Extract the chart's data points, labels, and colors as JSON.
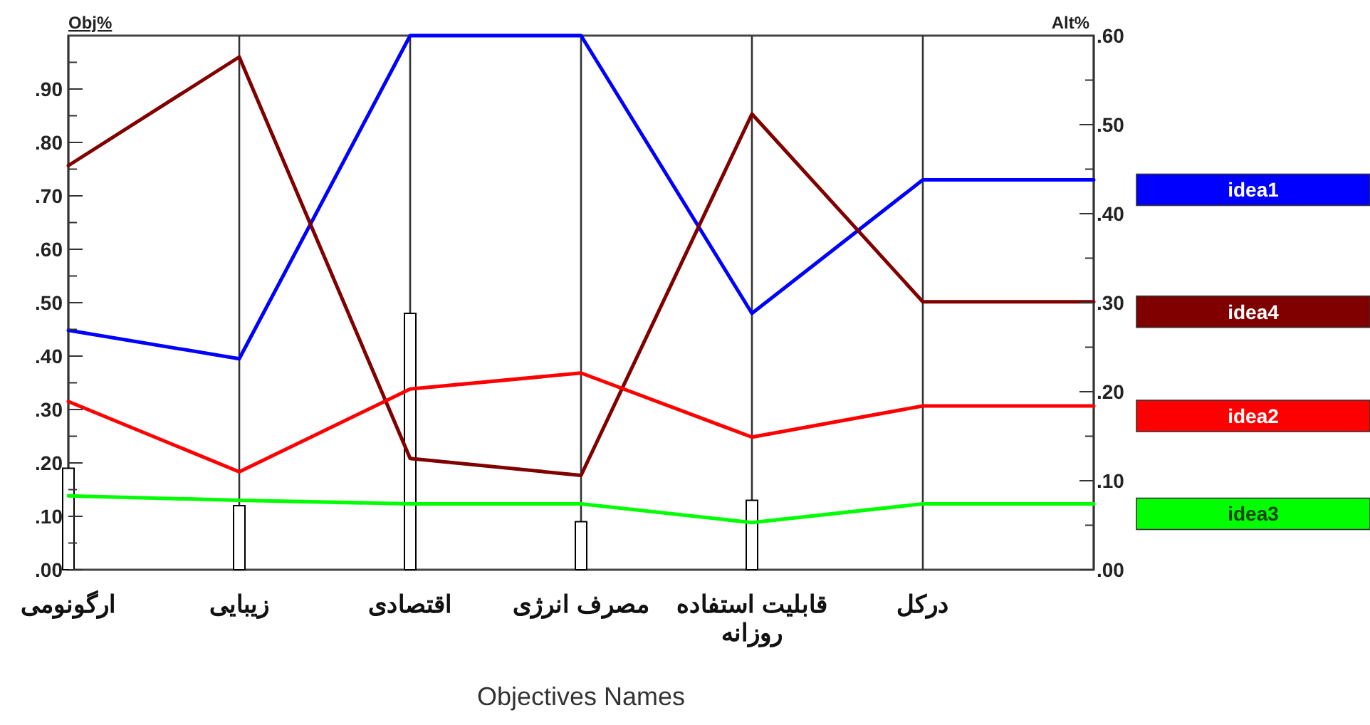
{
  "chart_data": {
    "type": "line",
    "xlabel": "Objectives Names",
    "ylabel": "Obj%",
    "y2label": "Alt%",
    "categories": [
      "ارگونومی",
      "زیبایی",
      "اقتصادی",
      "مصرف انرژی",
      "قابلیت استفاده روزانه",
      "درکل",
      null
    ],
    "series": [
      {
        "type": "bar",
        "color": "#ffffff",
        "values": [
          0.19,
          0.12,
          0.48,
          0.09,
          0.13,
          null,
          null
        ]
      },
      {
        "name": "idea1",
        "color": "#0000ff",
        "axis": "y2",
        "values": [
          0.269,
          0.237,
          0.6,
          0.6,
          0.288,
          0.438,
          0.438
        ]
      },
      {
        "name": "idea4",
        "color": "#800000",
        "axis": "y2",
        "values": [
          0.454,
          0.576,
          0.125,
          0.106,
          0.512,
          0.301,
          0.301
        ]
      },
      {
        "name": "idea2",
        "color": "#ff0000",
        "axis": "y2",
        "values": [
          0.189,
          0.11,
          0.203,
          0.221,
          0.149,
          0.184,
          0.184
        ]
      },
      {
        "name": "idea3",
        "color": "#00ff00",
        "axis": "y2",
        "values": [
          0.083,
          0.078,
          0.074,
          0.074,
          0.053,
          0.074,
          0.074
        ]
      }
    ],
    "ylim": [
      0,
      1
    ],
    "yticks": [
      {
        "value": 0,
        "label": ".00"
      },
      {
        "value": 0.05,
        "label": null
      },
      {
        "value": 0.1,
        "label": ".10"
      },
      {
        "value": 0.15,
        "label": null
      },
      {
        "value": 0.2,
        "label": ".20"
      },
      {
        "value": 0.25,
        "label": null
      },
      {
        "value": 0.3,
        "label": ".30"
      },
      {
        "value": 0.35,
        "label": null
      },
      {
        "value": 0.4,
        "label": ".40"
      },
      {
        "value": 0.45,
        "label": null
      },
      {
        "value": 0.5,
        "label": ".50"
      },
      {
        "value": 0.55,
        "label": null
      },
      {
        "value": 0.6,
        "label": ".60"
      },
      {
        "value": 0.65,
        "label": null
      },
      {
        "value": 0.7,
        "label": ".70"
      },
      {
        "value": 0.75,
        "label": null
      },
      {
        "value": 0.8,
        "label": ".80"
      },
      {
        "value": 0.85,
        "label": null
      },
      {
        "value": 0.9,
        "label": ".90"
      },
      {
        "value": 0.95,
        "label": null
      }
    ],
    "y2lim": [
      0,
      0.6
    ],
    "y2ticks": [
      {
        "value": 0,
        "label": ".00"
      },
      {
        "value": 0.05,
        "label": null
      },
      {
        "value": 0.1,
        "label": ".10"
      },
      {
        "value": 0.15,
        "label": null
      },
      {
        "value": 0.2,
        "label": ".20"
      },
      {
        "value": 0.25,
        "label": null
      },
      {
        "value": 0.3,
        "label": ".30"
      },
      {
        "value": 0.35,
        "label": null
      },
      {
        "value": 0.4,
        "label": ".40"
      },
      {
        "value": 0.45,
        "label": null
      },
      {
        "value": 0.5,
        "label": ".50"
      },
      {
        "value": 0.55,
        "label": null
      },
      {
        "value": 0.6,
        "label": ".60"
      }
    ],
    "grid": "x",
    "legend": "right",
    "marker": "none",
    "line_style": "solid"
  }
}
